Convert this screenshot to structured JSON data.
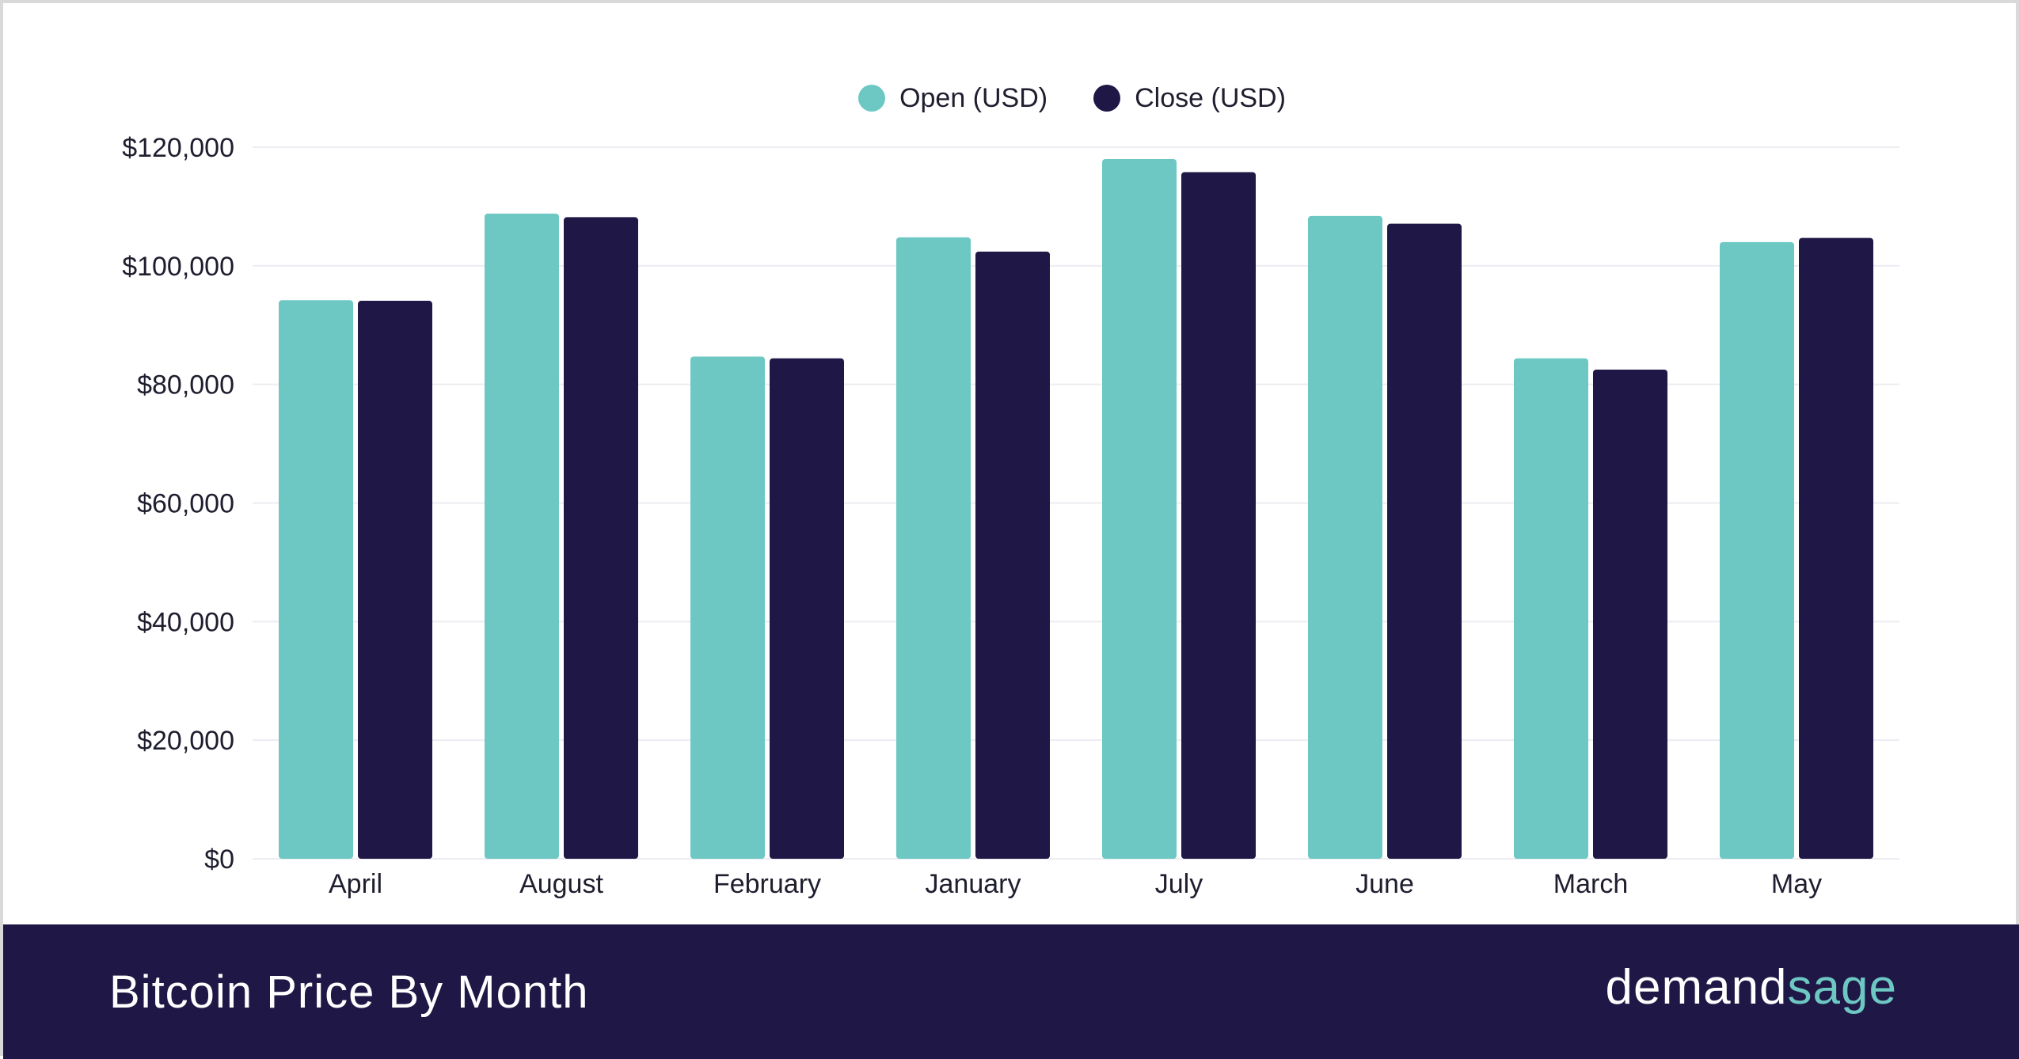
{
  "colors": {
    "open": "#6dc8c3",
    "close": "#1f1846",
    "footer_bg": "#1f1846",
    "grid": "#ececf2",
    "axis": "#1e1e2f",
    "brand_accent": "#6dc8c3"
  },
  "footer": {
    "title": "Bitcoin Price By Month",
    "brand_part_1": "demand",
    "brand_part_2": "sage"
  },
  "legend": {
    "open_label": "Open (USD)",
    "close_label": "Close (USD)"
  },
  "chart_data": {
    "type": "bar",
    "title": "Bitcoin Price By Month",
    "xlabel": "",
    "ylabel": "",
    "categories": [
      "April",
      "August",
      "February",
      "January",
      "July",
      "June",
      "March",
      "May"
    ],
    "series": [
      {
        "name": "Open (USD)",
        "values": [
          94200,
          108800,
          84700,
          104800,
          118000,
          108400,
          84400,
          104000
        ]
      },
      {
        "name": "Close (USD)",
        "values": [
          94100,
          108200,
          84400,
          102400,
          115800,
          107100,
          82500,
          104700
        ]
      }
    ],
    "ylim": [
      0,
      120000
    ],
    "yticks": [
      0,
      20000,
      40000,
      60000,
      80000,
      100000,
      120000
    ],
    "ytick_labels": [
      "$0",
      "$20,000",
      "$40,000",
      "$60,000",
      "$80,000",
      "$100,000",
      "$120,000"
    ],
    "grid": true,
    "legend_position": "top-center"
  }
}
